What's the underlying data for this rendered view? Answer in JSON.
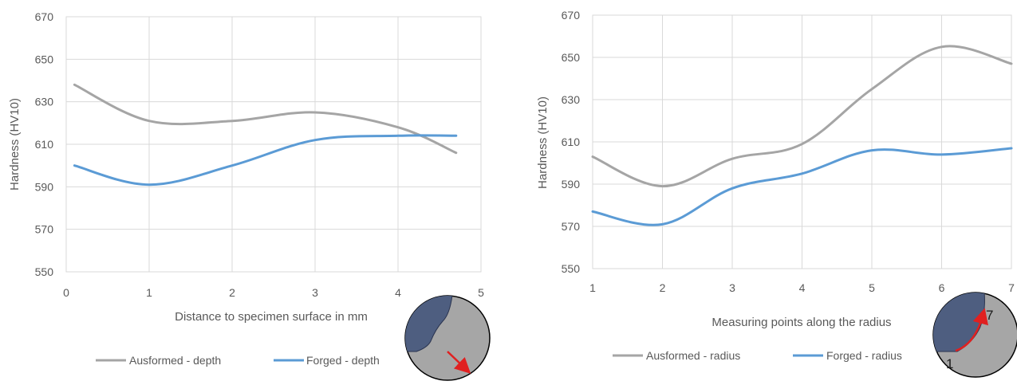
{
  "chart_data": [
    {
      "type": "line",
      "xlabel": "Distance to specimen surface in mm",
      "ylabel": "Hardness (HV10)",
      "xlim": [
        0,
        5
      ],
      "ylim": [
        550,
        670
      ],
      "x_ticks": [
        0,
        1,
        2,
        3,
        4,
        5
      ],
      "y_ticks": [
        550,
        570,
        590,
        610,
        630,
        650,
        670
      ],
      "grid": true,
      "legend_position": "bottom",
      "series": [
        {
          "name": "Ausformed - depth",
          "color": "#a5a5a5",
          "x": [
            0.1,
            1.0,
            2.0,
            3.0,
            4.0,
            4.7
          ],
          "y": [
            638,
            621,
            621,
            625,
            618,
            606
          ]
        },
        {
          "name": "Forged - depth",
          "color": "#5b9bd5",
          "x": [
            0.1,
            1.0,
            2.0,
            3.0,
            4.0,
            4.7
          ],
          "y": [
            600,
            591,
            600,
            612,
            614,
            614
          ]
        }
      ],
      "inset": {
        "description_icon": "cross-section-depth-arrow-icon",
        "arrow_color": "#e02020",
        "zone_color": "#4e5e80"
      }
    },
    {
      "type": "line",
      "xlabel": "Measuring points along the radius",
      "ylabel": "Hardness (HV10)",
      "xlim": [
        1,
        7
      ],
      "ylim": [
        550,
        670
      ],
      "x_ticks": [
        1,
        2,
        3,
        4,
        5,
        6,
        7
      ],
      "y_ticks": [
        550,
        570,
        590,
        610,
        630,
        650,
        670
      ],
      "grid": true,
      "legend_position": "bottom",
      "series": [
        {
          "name": "Ausformed - radius",
          "color": "#a5a5a5",
          "x": [
            1,
            2,
            3,
            4,
            5,
            6,
            7
          ],
          "y": [
            603,
            589,
            602,
            609,
            635,
            655,
            647
          ]
        },
        {
          "name": "Forged - radius",
          "color": "#5b9bd5",
          "x": [
            1,
            2,
            3,
            4,
            5,
            6,
            7
          ],
          "y": [
            577,
            571,
            588,
            595,
            606,
            604,
            607
          ]
        }
      ],
      "inset": {
        "description_icon": "cross-section-radius-arrow-icon",
        "arrow_color": "#e02020",
        "zone_color": "#4e5e80",
        "start_label": "1",
        "end_label": "7"
      }
    }
  ]
}
